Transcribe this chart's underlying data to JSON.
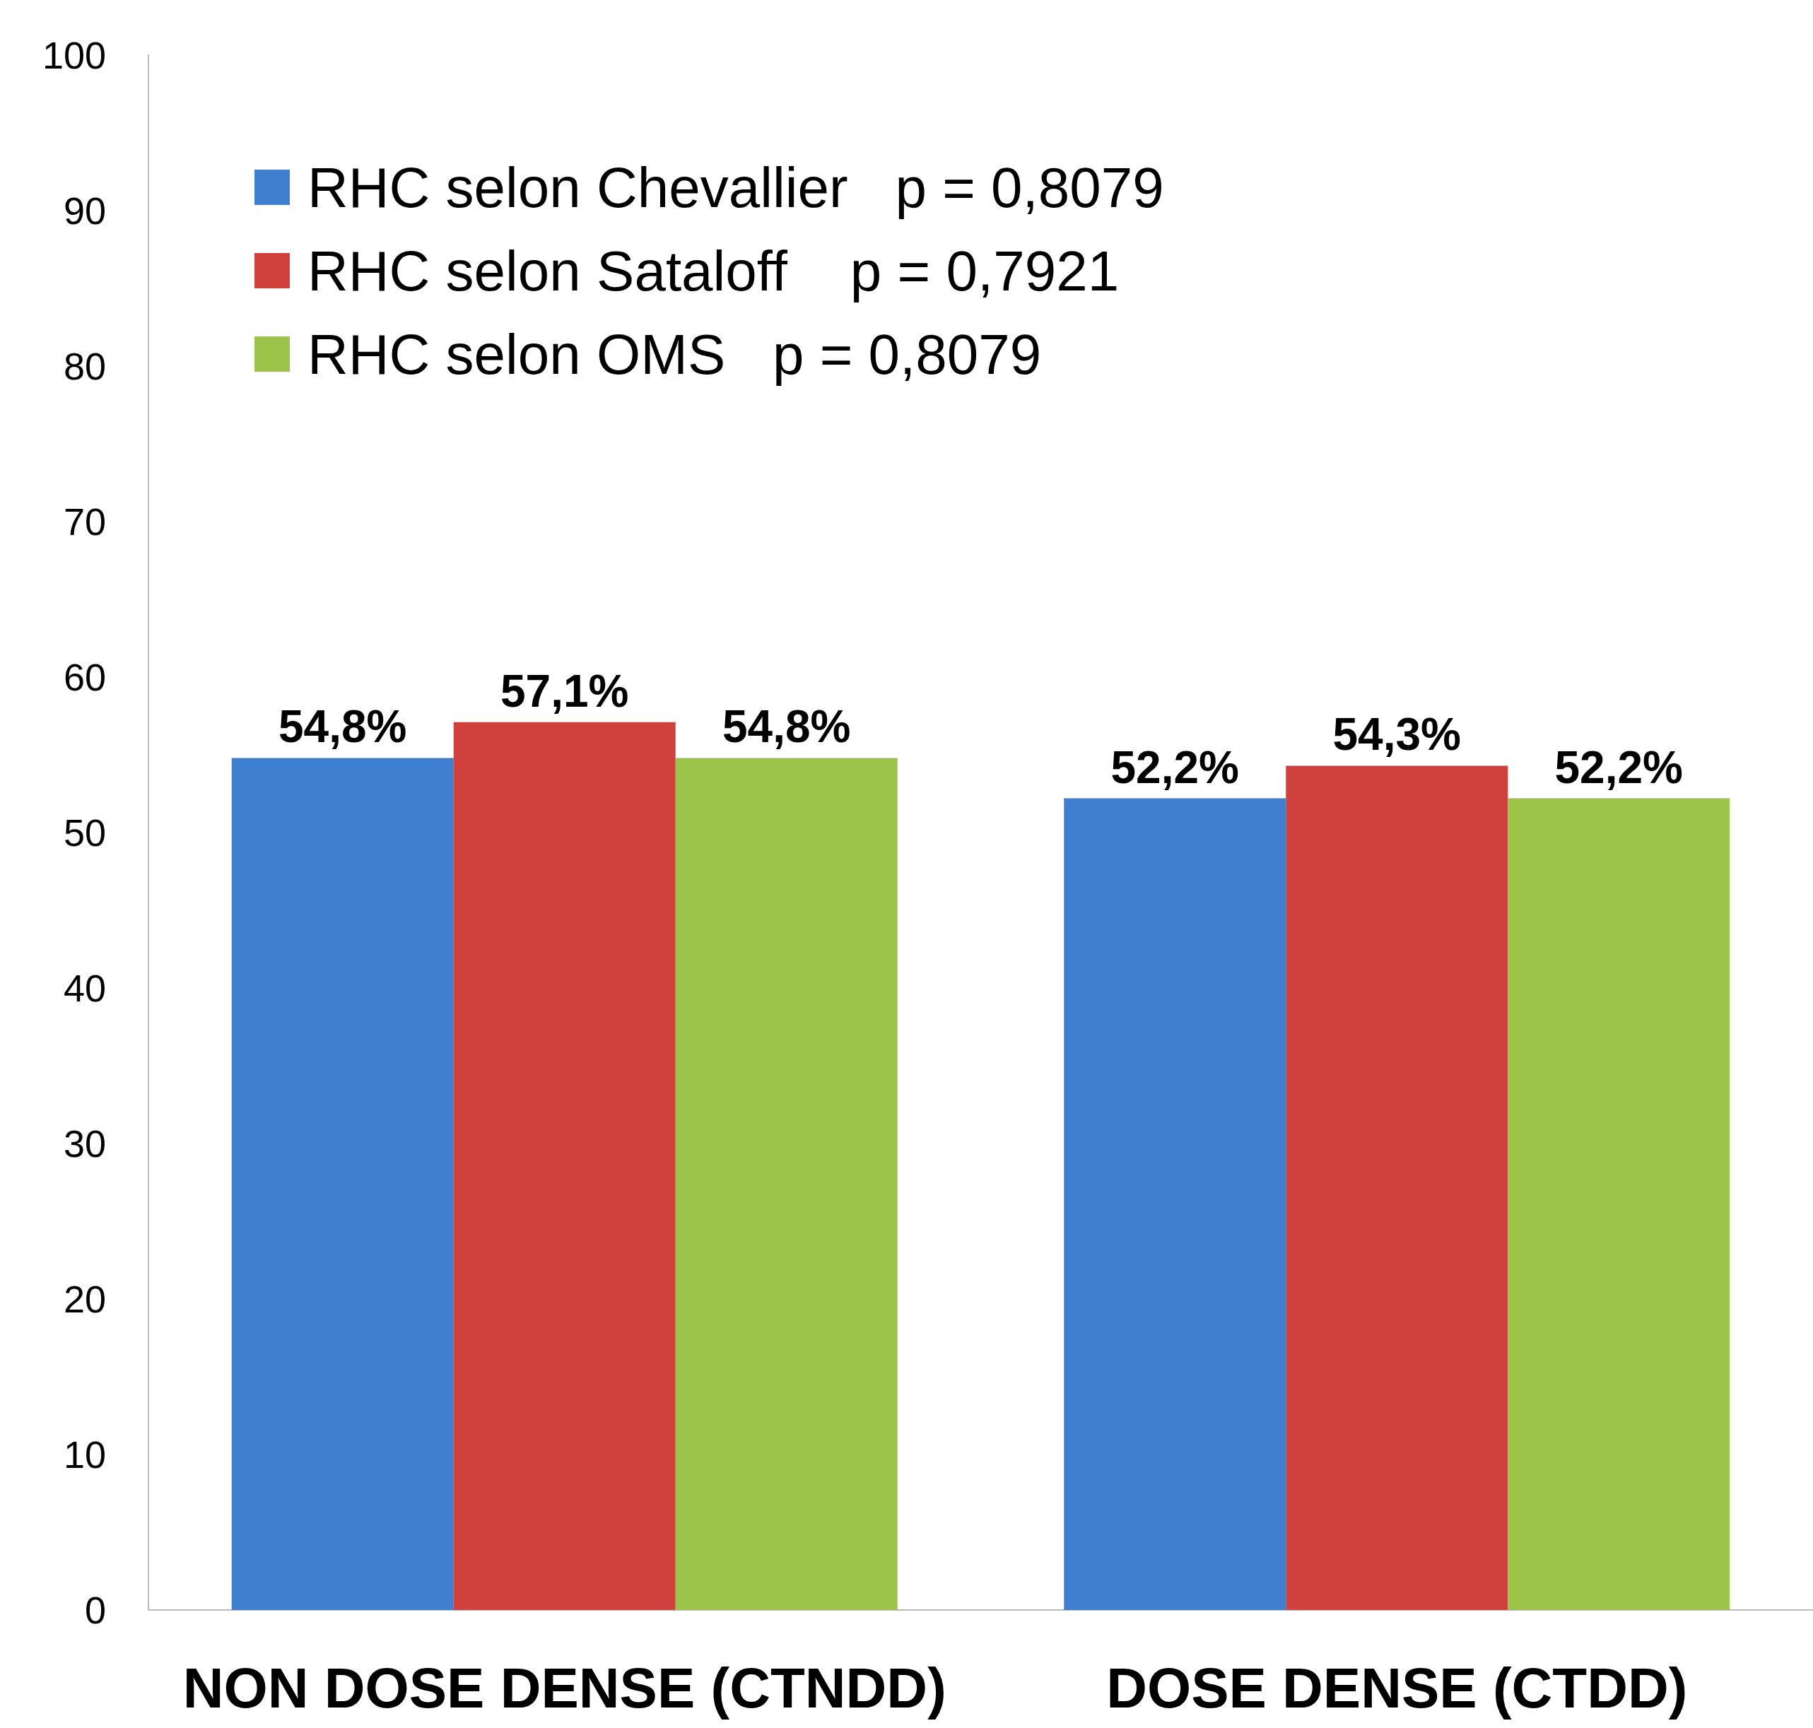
{
  "chart_data": {
    "type": "bar",
    "categories": [
      "NON DOSE DENSE (CTNDD)",
      "DOSE DENSE (CTDD)"
    ],
    "series": [
      {
        "name": "RHC selon Chevallier   p = 0,8079",
        "color": "#3f7fd0",
        "values": [
          54.8,
          52.2
        ],
        "value_labels": [
          "54,8%",
          "52,2%"
        ]
      },
      {
        "name": "RHC selon Sataloff    p = 0,7921",
        "color": "#d0403d",
        "values": [
          57.1,
          54.3
        ],
        "value_labels": [
          "57,1%",
          "54,3%"
        ]
      },
      {
        "name": "RHC selon OMS   p = 0,8079",
        "color": "#9cc44a",
        "values": [
          54.8,
          52.2
        ],
        "value_labels": [
          "54,8%",
          "52,2%"
        ]
      }
    ],
    "ylim": [
      0,
      100
    ],
    "yticks": [
      0,
      10,
      20,
      30,
      40,
      50,
      60,
      70,
      80,
      90,
      100
    ],
    "grid": false,
    "legend": "top left"
  }
}
